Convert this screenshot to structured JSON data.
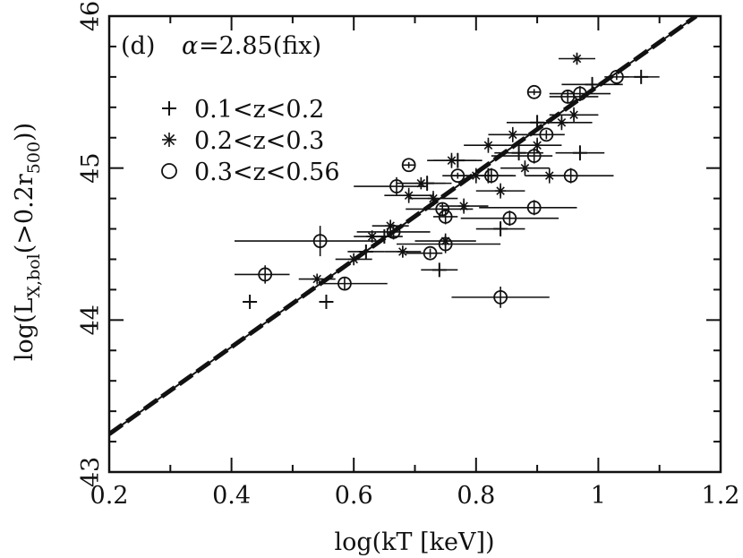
{
  "chart_data": {
    "type": "scatter",
    "panel_label": "(d)",
    "annotation_alpha_symbol": "α",
    "annotation_rest": "=2.85(fix)",
    "xlabel": "log(kT [keV])",
    "ylabel_prefix": "log(L",
    "ylabel_sub1": "X,bol",
    "ylabel_mid": "(>0.2r",
    "ylabel_sub2": "500",
    "ylabel_suffix": "))",
    "xlim": [
      0.2,
      1.2
    ],
    "ylim": [
      43,
      46
    ],
    "x_ticks": [
      0.2,
      0.4,
      0.6,
      0.8,
      1.0,
      1.2
    ],
    "x_tick_labels": [
      "0.2",
      "0.4",
      "0.6",
      "0.8",
      "1",
      "1.2"
    ],
    "y_ticks": [
      43,
      44,
      45,
      46
    ],
    "y_tick_labels": [
      "43",
      "44",
      "45",
      "46"
    ],
    "legend": [
      {
        "marker": "plus",
        "label": "0.1<z<0.2"
      },
      {
        "marker": "star",
        "label": "0.2<z<0.3"
      },
      {
        "marker": "circle",
        "label": "0.3<z<0.56"
      }
    ],
    "lines": [
      {
        "style": "solid",
        "x": [
          0.2,
          1.16
        ],
        "y": [
          43.25,
          46.0
        ]
      },
      {
        "style": "dashed",
        "x": [
          0.2,
          1.16
        ],
        "y": [
          43.25,
          46.0
        ]
      }
    ],
    "series": [
      {
        "marker": "plus",
        "points": [
          {
            "x": 0.43,
            "y": 44.12,
            "xerr": [
              0,
              0
            ],
            "yerr": [
              0,
              0
            ]
          },
          {
            "x": 0.555,
            "y": 44.12,
            "xerr": [
              0,
              0
            ],
            "yerr": [
              0,
              0
            ]
          },
          {
            "x": 0.65,
            "y": 44.55,
            "xerr": [
              0.03,
              0.03
            ],
            "yerr": [
              0.02,
              0.02
            ]
          },
          {
            "x": 0.74,
            "y": 44.33,
            "xerr": [
              0.03,
              0.03
            ],
            "yerr": [
              0.03,
              0.03
            ]
          },
          {
            "x": 0.84,
            "y": 44.6,
            "xerr": [
              0.04,
              0.04
            ],
            "yerr": [
              0.05,
              0.05
            ]
          },
          {
            "x": 0.82,
            "y": 44.95,
            "xerr": [
              0.04,
              0.04
            ],
            "yerr": [
              0.05,
              0.05
            ]
          },
          {
            "x": 0.87,
            "y": 45.1,
            "xerr": [
              0.04,
              0.04
            ],
            "yerr": [
              0.05,
              0.05
            ]
          },
          {
            "x": 0.9,
            "y": 45.3,
            "xerr": [
              0.05,
              0.05
            ],
            "yerr": [
              0.05,
              0.05
            ]
          },
          {
            "x": 0.97,
            "y": 45.1,
            "xerr": [
              0.04,
              0.04
            ],
            "yerr": [
              0.05,
              0.05
            ]
          },
          {
            "x": 0.99,
            "y": 45.55,
            "xerr": [
              0.05,
              0.05
            ],
            "yerr": [
              0.05,
              0.05
            ]
          },
          {
            "x": 1.07,
            "y": 45.6,
            "xerr": [
              0.03,
              0.03
            ],
            "yerr": [
              0.04,
              0.04
            ]
          },
          {
            "x": 0.72,
            "y": 44.9,
            "xerr": [
              0.04,
              0.04
            ],
            "yerr": [
              0.05,
              0.05
            ]
          },
          {
            "x": 0.77,
            "y": 45.05,
            "xerr": [
              0.04,
              0.04
            ],
            "yerr": [
              0.05,
              0.05
            ]
          },
          {
            "x": 0.62,
            "y": 44.45,
            "xerr": [
              0.03,
              0.03
            ],
            "yerr": [
              0.04,
              0.04
            ]
          }
        ]
      },
      {
        "marker": "star",
        "points": [
          {
            "x": 0.54,
            "y": 44.27,
            "xerr": [
              0.03,
              0.03
            ],
            "yerr": [
              0.03,
              0.03
            ]
          },
          {
            "x": 0.6,
            "y": 44.4,
            "xerr": [
              0.03,
              0.03
            ],
            "yerr": [
              0.04,
              0.04
            ]
          },
          {
            "x": 0.63,
            "y": 44.55,
            "xerr": [
              0.03,
              0.03
            ],
            "yerr": [
              0.04,
              0.04
            ]
          },
          {
            "x": 0.66,
            "y": 44.62,
            "xerr": [
              0.03,
              0.03
            ],
            "yerr": [
              0.04,
              0.04
            ]
          },
          {
            "x": 0.68,
            "y": 44.45,
            "xerr": [
              0.03,
              0.03
            ],
            "yerr": [
              0.04,
              0.04
            ]
          },
          {
            "x": 0.69,
            "y": 44.82,
            "xerr": [
              0.04,
              0.04
            ],
            "yerr": [
              0.05,
              0.05
            ]
          },
          {
            "x": 0.71,
            "y": 44.9,
            "xerr": [
              0.04,
              0.04
            ],
            "yerr": [
              0.04,
              0.04
            ]
          },
          {
            "x": 0.73,
            "y": 44.8,
            "xerr": [
              0.04,
              0.04
            ],
            "yerr": [
              0.05,
              0.05
            ]
          },
          {
            "x": 0.76,
            "y": 45.05,
            "xerr": [
              0.04,
              0.04
            ],
            "yerr": [
              0.05,
              0.05
            ]
          },
          {
            "x": 0.78,
            "y": 44.75,
            "xerr": [
              0.04,
              0.04
            ],
            "yerr": [
              0.05,
              0.05
            ]
          },
          {
            "x": 0.8,
            "y": 44.95,
            "xerr": [
              0.04,
              0.04
            ],
            "yerr": [
              0.05,
              0.05
            ]
          },
          {
            "x": 0.82,
            "y": 45.15,
            "xerr": [
              0.04,
              0.04
            ],
            "yerr": [
              0.05,
              0.05
            ]
          },
          {
            "x": 0.84,
            "y": 44.85,
            "xerr": [
              0.04,
              0.04
            ],
            "yerr": [
              0.05,
              0.05
            ]
          },
          {
            "x": 0.86,
            "y": 45.22,
            "xerr": [
              0.04,
              0.04
            ],
            "yerr": [
              0.05,
              0.05
            ]
          },
          {
            "x": 0.88,
            "y": 45.0,
            "xerr": [
              0.04,
              0.04
            ],
            "yerr": [
              0.05,
              0.05
            ]
          },
          {
            "x": 0.9,
            "y": 45.15,
            "xerr": [
              0.04,
              0.04
            ],
            "yerr": [
              0.05,
              0.05
            ]
          },
          {
            "x": 0.92,
            "y": 44.95,
            "xerr": [
              0.04,
              0.04
            ],
            "yerr": [
              0.05,
              0.05
            ]
          },
          {
            "x": 0.94,
            "y": 45.3,
            "xerr": [
              0.05,
              0.05
            ],
            "yerr": [
              0.05,
              0.05
            ]
          },
          {
            "x": 0.96,
            "y": 45.35,
            "xerr": [
              0.04,
              0.04
            ],
            "yerr": [
              0.05,
              0.05
            ]
          },
          {
            "x": 0.965,
            "y": 45.72,
            "xerr": [
              0.03,
              0.03
            ],
            "yerr": [
              0.04,
              0.04
            ]
          },
          {
            "x": 0.75,
            "y": 44.52,
            "xerr": [
              0.05,
              0.05
            ],
            "yerr": [
              0.05,
              0.05
            ]
          }
        ]
      },
      {
        "marker": "circle",
        "points": [
          {
            "x": 0.455,
            "y": 44.3,
            "xerr": [
              0.05,
              0.04
            ],
            "yerr": [
              0.06,
              0.06
            ]
          },
          {
            "x": 0.545,
            "y": 44.52,
            "xerr": [
              0.14,
              0.1
            ],
            "yerr": [
              0.1,
              0.1
            ]
          },
          {
            "x": 0.585,
            "y": 44.24,
            "xerr": [
              0.04,
              0.07
            ],
            "yerr": [
              0.04,
              0.04
            ]
          },
          {
            "x": 0.665,
            "y": 44.58,
            "xerr": [
              0.06,
              0.06
            ],
            "yerr": [
              0.05,
              0.05
            ]
          },
          {
            "x": 0.67,
            "y": 44.88,
            "xerr": [
              0.07,
              0.05
            ],
            "yerr": [
              0.06,
              0.06
            ]
          },
          {
            "x": 0.69,
            "y": 45.02,
            "xerr": [
              0.01,
              0.01
            ],
            "yerr": [
              0.02,
              0.02
            ]
          },
          {
            "x": 0.725,
            "y": 44.44,
            "xerr": [
              0.04,
              0.02
            ],
            "yerr": [
              0.03,
              0.03
            ]
          },
          {
            "x": 0.745,
            "y": 44.73,
            "xerr": [
              0.06,
              0.05
            ],
            "yerr": [
              0.04,
              0.04
            ]
          },
          {
            "x": 0.75,
            "y": 44.68,
            "xerr": [
              0.02,
              0.02
            ],
            "yerr": [
              0.05,
              0.05
            ]
          },
          {
            "x": 0.75,
            "y": 44.5,
            "xerr": [
              0.08,
              0.09
            ],
            "yerr": [
              0.06,
              0.06
            ]
          },
          {
            "x": 0.77,
            "y": 44.95,
            "xerr": [
              0.01,
              0.01
            ],
            "yerr": [
              0.02,
              0.02
            ]
          },
          {
            "x": 0.825,
            "y": 44.95,
            "xerr": [
              0.08,
              0.04
            ],
            "yerr": [
              0.05,
              0.05
            ]
          },
          {
            "x": 0.84,
            "y": 44.15,
            "xerr": [
              0.08,
              0.08
            ],
            "yerr": [
              0.07,
              0.07
            ]
          },
          {
            "x": 0.855,
            "y": 44.67,
            "xerr": [
              0.08,
              0.08
            ],
            "yerr": [
              0.05,
              0.05
            ]
          },
          {
            "x": 0.895,
            "y": 45.08,
            "xerr": [
              0.07,
              0.03
            ],
            "yerr": [
              0.05,
              0.05
            ]
          },
          {
            "x": 0.895,
            "y": 44.74,
            "xerr": [
              0.09,
              0.07
            ],
            "yerr": [
              0.05,
              0.05
            ]
          },
          {
            "x": 0.895,
            "y": 45.5,
            "xerr": [
              0.01,
              0.01
            ],
            "yerr": [
              0.02,
              0.02
            ]
          },
          {
            "x": 0.915,
            "y": 45.22,
            "xerr": [
              0.04,
              0.03
            ],
            "yerr": [
              0.03,
              0.03
            ]
          },
          {
            "x": 0.95,
            "y": 45.47,
            "xerr": [
              0.03,
              0.05
            ],
            "yerr": [
              0.04,
              0.04
            ]
          },
          {
            "x": 0.955,
            "y": 44.95,
            "xerr": [
              0.07,
              0.07
            ],
            "yerr": [
              0.05,
              0.05
            ]
          },
          {
            "x": 0.97,
            "y": 45.49,
            "xerr": [
              0.05,
              0.05
            ],
            "yerr": [
              0.05,
              0.05
            ]
          },
          {
            "x": 1.03,
            "y": 45.6,
            "xerr": [
              0.02,
              0.02
            ],
            "yerr": [
              0.02,
              0.02
            ]
          }
        ]
      }
    ]
  }
}
